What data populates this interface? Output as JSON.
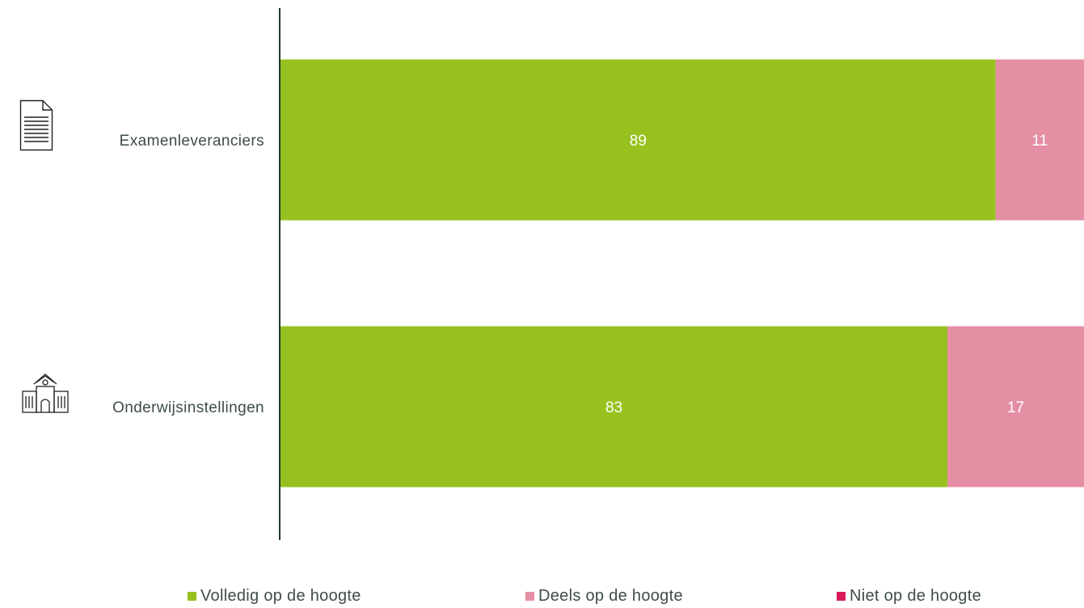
{
  "chart_data": {
    "type": "bar",
    "orientation": "horizontal",
    "stacked": true,
    "categories": [
      "Examenleveranciers",
      "Onderwijsinstellingen"
    ],
    "category_icons": [
      "document-icon",
      "school-building-icon"
    ],
    "series": [
      {
        "name": "Volledig op de hoogte",
        "color": "#97c11f",
        "values": [
          89,
          83
        ]
      },
      {
        "name": "Deels op de hoogte",
        "color": "#e58fa5",
        "values": [
          11,
          17
        ]
      },
      {
        "name": "Niet op de hoogte",
        "color": "#d81b5b",
        "values": [
          0,
          0
        ]
      }
    ],
    "xlim": [
      0,
      100
    ],
    "grid": false,
    "data_labels": true,
    "legend_position": "bottom"
  }
}
